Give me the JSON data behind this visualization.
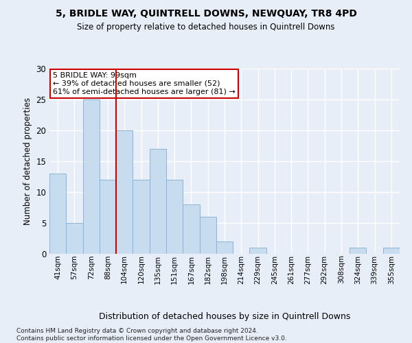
{
  "title1": "5, BRIDLE WAY, QUINTRELL DOWNS, NEWQUAY, TR8 4PD",
  "title2": "Size of property relative to detached houses in Quintrell Downs",
  "xlabel": "Distribution of detached houses by size in Quintrell Downs",
  "ylabel": "Number of detached properties",
  "bar_labels": [
    "41sqm",
    "57sqm",
    "72sqm",
    "88sqm",
    "104sqm",
    "120sqm",
    "135sqm",
    "151sqm",
    "167sqm",
    "182sqm",
    "198sqm",
    "214sqm",
    "229sqm",
    "245sqm",
    "261sqm",
    "277sqm",
    "292sqm",
    "308sqm",
    "324sqm",
    "339sqm",
    "355sqm"
  ],
  "bar_values": [
    13,
    5,
    25,
    12,
    20,
    12,
    17,
    12,
    8,
    6,
    2,
    0,
    1,
    0,
    0,
    0,
    0,
    0,
    1,
    0,
    1
  ],
  "bar_color": "#c8dcf0",
  "bar_edge_color": "#8ab4d8",
  "vline_x": 3.5,
  "vline_color": "#cc0000",
  "annotation_text": "5 BRIDLE WAY: 99sqm\n← 39% of detached houses are smaller (52)\n61% of semi-detached houses are larger (81) →",
  "annotation_box_color": "#cc0000",
  "ylim": [
    0,
    30
  ],
  "yticks": [
    0,
    5,
    10,
    15,
    20,
    25,
    30
  ],
  "footer": "Contains HM Land Registry data © Crown copyright and database right 2024.\nContains public sector information licensed under the Open Government Licence v3.0.",
  "bg_color": "#e8eef8",
  "plot_bg_color": "#e8eef8"
}
